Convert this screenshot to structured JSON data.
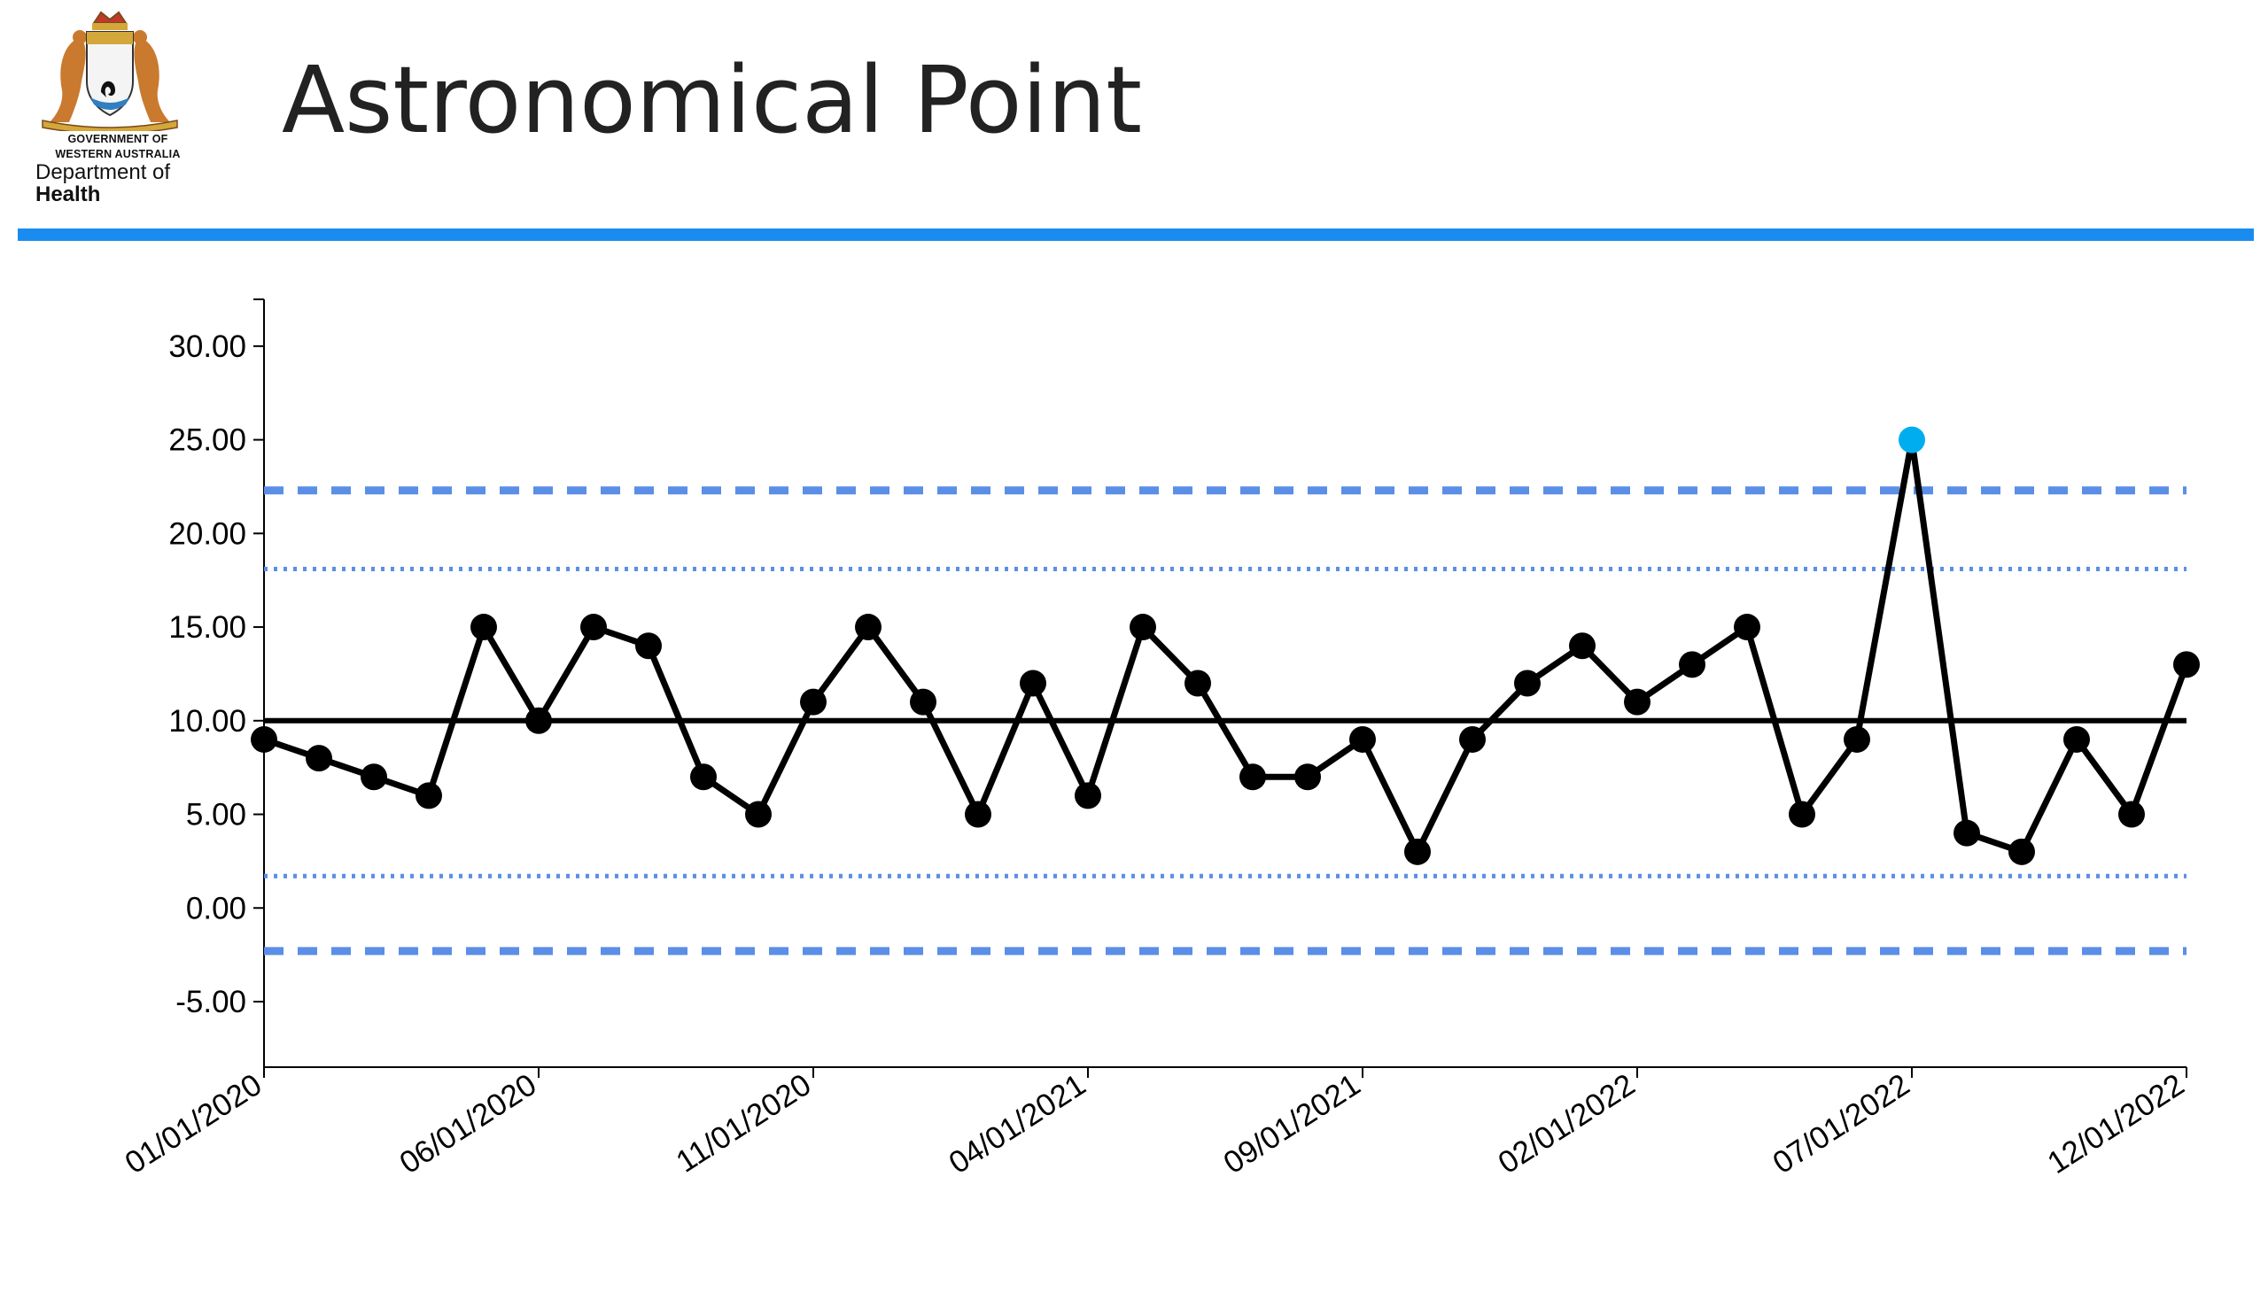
{
  "header": {
    "title": "Astronomical Point",
    "logo": {
      "line1": "GOVERNMENT OF",
      "line2": "WESTERN AUSTRALIA",
      "line3": "Department of",
      "line4": "Health"
    }
  },
  "colors": {
    "accent_bar": "#1a8cf0",
    "data_line": "#000000",
    "limit_lines": "#5b8ee6",
    "astronomical_point": "#00aeef"
  },
  "chart_data": {
    "type": "line",
    "title": "Astronomical Point",
    "xlabel": "",
    "ylabel": "",
    "x": [
      "2020-01",
      "2020-02",
      "2020-03",
      "2020-04",
      "2020-05",
      "2020-06",
      "2020-07",
      "2020-08",
      "2020-09",
      "2020-10",
      "2020-11",
      "2020-12",
      "2021-01",
      "2021-02",
      "2021-03",
      "2021-04",
      "2021-05",
      "2021-06",
      "2021-07",
      "2021-08",
      "2021-09",
      "2021-10",
      "2021-11",
      "2021-12",
      "2022-01",
      "2022-02",
      "2022-03",
      "2022-04",
      "2022-05",
      "2022-06",
      "2022-07",
      "2022-08",
      "2022-09",
      "2022-10",
      "2022-11",
      "2022-12"
    ],
    "values": [
      9,
      8,
      7,
      6,
      15,
      10,
      15,
      14,
      7,
      5,
      11,
      15,
      11,
      5,
      12,
      6,
      15,
      12,
      7,
      7,
      9,
      3,
      9,
      12,
      14,
      11,
      13,
      15,
      5,
      9,
      25,
      4,
      3,
      9,
      5,
      13
    ],
    "highlighted_points": [
      {
        "x": "2022-07",
        "value": 25
      }
    ],
    "center_line": 10.0,
    "upper_control_limit": 22.3,
    "lower_control_limit": -2.3,
    "upper_warning_limit": 18.1,
    "lower_warning_limit": 1.7,
    "ylim": [
      -8.5,
      32.5
    ],
    "y_ticks": [
      "-5.00",
      "0.00",
      "5.00",
      "10.00",
      "15.00",
      "20.00",
      "25.00",
      "30.00"
    ],
    "x_ticks": [
      "01/01/2020",
      "06/01/2020",
      "11/01/2020",
      "04/01/2021",
      "09/01/2021",
      "02/01/2022",
      "07/01/2022",
      "12/01/2022"
    ],
    "grid": false,
    "legend": "none"
  }
}
